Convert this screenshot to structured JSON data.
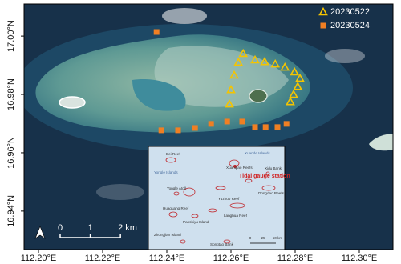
{
  "chart_data": {
    "type": "map",
    "xlim": [
      112.1955,
      112.3105
    ],
    "ylim": [
      16.9268,
      17.011
    ],
    "xticks": [
      {
        "value": 112.2,
        "label": "112.20°E"
      },
      {
        "value": 112.22,
        "label": "112.22°E"
      },
      {
        "value": 112.24,
        "label": "112.24°E"
      },
      {
        "value": 112.26,
        "label": "112.26°E"
      },
      {
        "value": 112.28,
        "label": "112.28°E"
      },
      {
        "value": 112.3,
        "label": "112.30°E"
      }
    ],
    "yticks": [
      {
        "value": 16.94,
        "label": "16.94°N"
      },
      {
        "value": 16.96,
        "label": "16.96°N"
      },
      {
        "value": 16.98,
        "label": "16.98°N"
      },
      {
        "value": 17.0,
        "label": "17.00°N"
      }
    ],
    "series": [
      {
        "name": "20230522",
        "color": "#f5c400",
        "marker": "triangle",
        "x": [
          112.2638,
          112.2675,
          112.2705,
          112.2738,
          112.2768,
          112.2798,
          112.2815,
          112.2808,
          112.2795,
          112.2785,
          112.2623,
          112.261,
          112.26,
          112.2595
        ],
        "y": [
          16.994,
          16.9918,
          16.9912,
          16.9904,
          16.9893,
          16.9877,
          16.9855,
          16.9827,
          16.98,
          16.9775,
          16.991,
          16.9866,
          16.9816,
          16.9767
        ]
      },
      {
        "name": "20230524",
        "color": "#f07f23",
        "marker": "square",
        "x": [
          112.2368,
          112.2383,
          112.2435,
          112.2488,
          112.2538,
          112.2588,
          112.2635,
          112.2675,
          112.2708,
          112.2745,
          112.2773
        ],
        "y": [
          17.0014,
          16.9677,
          16.9677,
          16.9685,
          16.9699,
          16.9707,
          16.9707,
          16.9688,
          16.9688,
          16.9688,
          16.9699
        ]
      }
    ],
    "scale_bar": {
      "ticks": [
        {
          "value": 0,
          "label": "0"
        },
        {
          "value": 1,
          "label": "1"
        },
        {
          "value": 2,
          "label": "2 km"
        }
      ]
    },
    "inset": {
      "labels": [
        "Bei Reef",
        "Xuande Islands",
        "Yongle Islands",
        "Xuanqiao Reefs",
        "Tidal gauge station",
        "Xidu Bank",
        "Yongle Atoll",
        "Yuzhuo Reef",
        "Dongdao Reefs",
        "Huaguang Reef",
        "Panshiyu Island",
        "Langhua Reef",
        "Zhongjian Island",
        "Songtao Bank",
        "0",
        "25",
        "50 km"
      ]
    }
  }
}
